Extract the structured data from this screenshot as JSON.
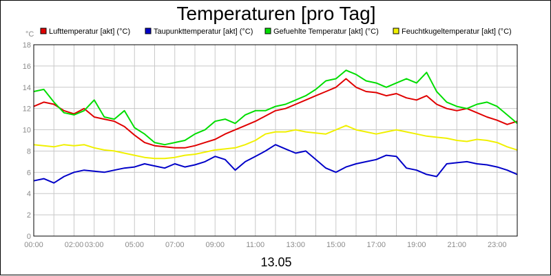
{
  "chart_data": {
    "type": "line",
    "title": "Temperaturen [pro Tag]",
    "ylabel": "°C",
    "date_label": "13.05",
    "ylim": [
      0,
      18
    ],
    "yticks": [
      0,
      2,
      4,
      6,
      8,
      10,
      12,
      14,
      16,
      18
    ],
    "xlim": [
      0,
      24
    ],
    "xticks": [
      {
        "h": 0,
        "label": "00:00"
      },
      {
        "h": 2,
        "label": "02:00"
      },
      {
        "h": 3,
        "label": "03:00"
      },
      {
        "h": 5,
        "label": "05:00"
      },
      {
        "h": 7,
        "label": "07:00"
      },
      {
        "h": 9,
        "label": "09:00"
      },
      {
        "h": 11,
        "label": "11:00"
      },
      {
        "h": 13,
        "label": "13:00"
      },
      {
        "h": 15,
        "label": "15:00"
      },
      {
        "h": 17,
        "label": "17:00"
      },
      {
        "h": 19,
        "label": "19:00"
      },
      {
        "h": 21,
        "label": "21:00"
      },
      {
        "h": 23,
        "label": "23:00"
      }
    ],
    "grid": true,
    "legend_position": "top",
    "x": [
      0,
      0.5,
      1,
      1.5,
      2,
      2.5,
      3,
      3.5,
      4,
      4.5,
      5,
      5.5,
      6,
      6.5,
      7,
      7.5,
      8,
      8.5,
      9,
      9.5,
      10,
      10.5,
      11,
      11.5,
      12,
      12.5,
      13,
      13.5,
      14,
      14.5,
      15,
      15.5,
      16,
      16.5,
      17,
      17.5,
      18,
      18.5,
      19,
      19.5,
      20,
      20.5,
      21,
      21.5,
      22,
      22.5,
      23,
      23.5,
      24
    ],
    "series": [
      {
        "name": "Lufttemperatur [akt] (°C)",
        "color": "#e00000",
        "values": [
          12.2,
          12.6,
          12.4,
          11.8,
          11.5,
          12.0,
          11.2,
          11.0,
          10.8,
          10.3,
          9.5,
          8.8,
          8.5,
          8.4,
          8.3,
          8.3,
          8.5,
          8.8,
          9.1,
          9.6,
          10.0,
          10.4,
          10.8,
          11.3,
          11.8,
          12.0,
          12.4,
          12.8,
          13.2,
          13.6,
          14.0,
          14.8,
          14.0,
          13.6,
          13.5,
          13.2,
          13.4,
          13.0,
          12.8,
          13.2,
          12.4,
          12.0,
          11.8,
          12.0,
          11.6,
          11.2,
          10.9,
          10.5,
          10.8
        ]
      },
      {
        "name": "Taupunkttemperatur [akt] (°C)",
        "color": "#0000c8",
        "values": [
          5.2,
          5.4,
          5.0,
          5.6,
          6.0,
          6.2,
          6.1,
          6.0,
          6.2,
          6.4,
          6.5,
          6.8,
          6.6,
          6.4,
          6.8,
          6.5,
          6.7,
          7.0,
          7.5,
          7.2,
          6.2,
          7.0,
          7.5,
          8.0,
          8.6,
          8.2,
          7.8,
          8.0,
          7.2,
          6.4,
          6.0,
          6.5,
          6.8,
          7.0,
          7.2,
          7.6,
          7.5,
          6.4,
          6.2,
          5.8,
          5.6,
          6.8,
          6.9,
          7.0,
          6.8,
          6.7,
          6.5,
          6.2,
          5.8
        ]
      },
      {
        "name": "Gefuehlte Temperatur [akt] (°C)",
        "color": "#00dd00",
        "values": [
          13.6,
          13.8,
          12.6,
          11.6,
          11.4,
          11.8,
          12.8,
          11.2,
          11.0,
          11.8,
          10.2,
          9.6,
          8.8,
          8.6,
          8.8,
          9.0,
          9.6,
          10.0,
          10.8,
          11.0,
          10.6,
          11.4,
          11.8,
          11.8,
          12.2,
          12.4,
          12.8,
          13.2,
          13.8,
          14.6,
          14.8,
          15.6,
          15.2,
          14.6,
          14.4,
          14.0,
          14.4,
          14.8,
          14.4,
          15.4,
          13.6,
          12.6,
          12.2,
          12.0,
          12.4,
          12.6,
          12.2,
          11.4,
          10.6
        ]
      },
      {
        "name": "Feuchtkugeltemperatur [akt] (°C)",
        "color": "#f0f000",
        "values": [
          8.6,
          8.5,
          8.4,
          8.6,
          8.5,
          8.6,
          8.3,
          8.1,
          8.0,
          7.8,
          7.6,
          7.4,
          7.3,
          7.3,
          7.4,
          7.6,
          7.7,
          7.9,
          8.1,
          8.2,
          8.3,
          8.6,
          9.0,
          9.6,
          9.8,
          9.8,
          10.0,
          9.8,
          9.7,
          9.6,
          10.0,
          10.4,
          10.0,
          9.8,
          9.6,
          9.8,
          10.0,
          9.8,
          9.6,
          9.4,
          9.3,
          9.2,
          9.0,
          8.9,
          9.1,
          9.0,
          8.8,
          8.4,
          8.1
        ]
      }
    ]
  }
}
